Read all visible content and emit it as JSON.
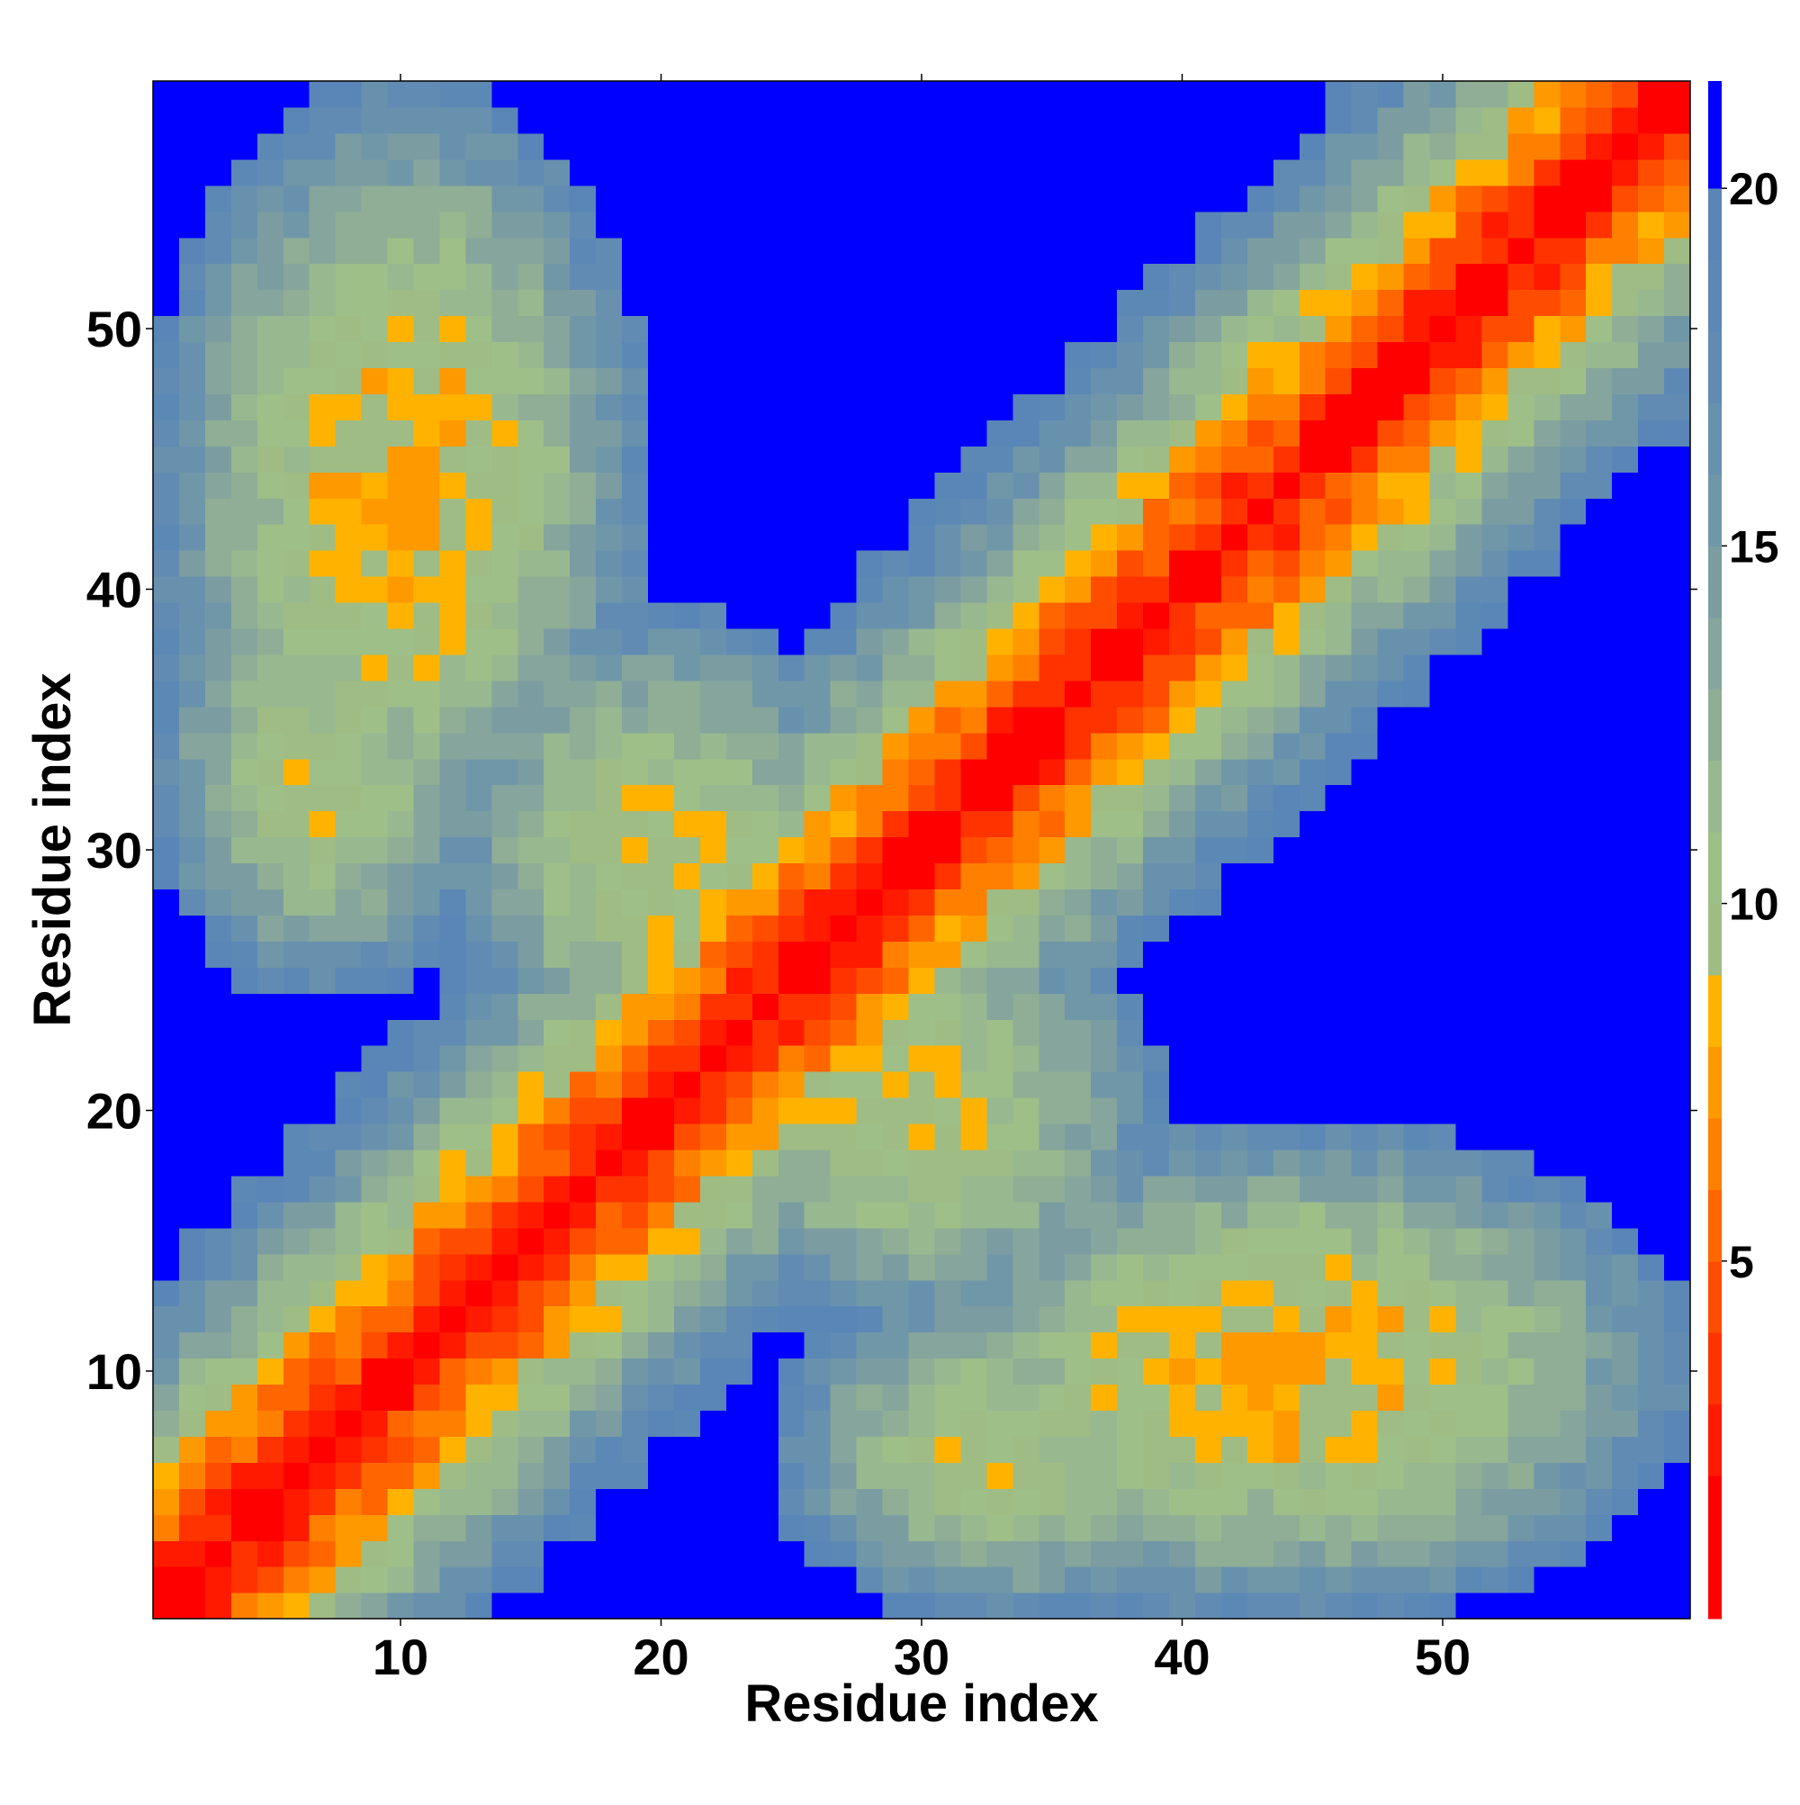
{
  "chart_data": {
    "type": "heatmap",
    "title": "",
    "xlabel": "Residue index",
    "ylabel": "Residue index",
    "n": 59,
    "xlim": [
      0.5,
      59.5
    ],
    "ylim": [
      0.5,
      59.5
    ],
    "x_ticks": [
      10,
      20,
      30,
      40,
      50
    ],
    "y_ticks": [
      10,
      20,
      30,
      40,
      50
    ],
    "x_tick_labels": [
      "10",
      "20",
      "30",
      "40",
      "50"
    ],
    "y_tick_labels": [
      "10",
      "20",
      "30",
      "40",
      "50"
    ],
    "grid": false,
    "colorbar": {
      "orientation": "vertical",
      "placement": "right",
      "range": [
        0,
        21.5
      ],
      "ticks": [
        5,
        10,
        15,
        20
      ],
      "tick_labels": [
        "5",
        "10",
        "15",
        "20"
      ],
      "bins": [
        {
          "from": 0.0,
          "to": 1.0,
          "color": "#ff0000"
        },
        {
          "from": 1.0,
          "to": 2.0,
          "color": "#ff0000"
        },
        {
          "from": 2.0,
          "to": 3.0,
          "color": "#ff1a00"
        },
        {
          "from": 3.0,
          "to": 4.0,
          "color": "#ff3300"
        },
        {
          "from": 4.0,
          "to": 5.0,
          "color": "#ff4d00"
        },
        {
          "from": 5.0,
          "to": 6.0,
          "color": "#ff6600"
        },
        {
          "from": 6.0,
          "to": 7.0,
          "color": "#ff8000"
        },
        {
          "from": 7.0,
          "to": 8.0,
          "color": "#ff9900"
        },
        {
          "from": 8.0,
          "to": 9.0,
          "color": "#ffb300"
        },
        {
          "from": 9.0,
          "to": 10.0,
          "color": "#9fbc85"
        },
        {
          "from": 10.0,
          "to": 11.0,
          "color": "#9ebf88"
        },
        {
          "from": 11.0,
          "to": 12.0,
          "color": "#98b88f"
        },
        {
          "from": 12.0,
          "to": 13.0,
          "color": "#8fae95"
        },
        {
          "from": 13.0,
          "to": 14.0,
          "color": "#86a59c"
        },
        {
          "from": 14.0,
          "to": 15.0,
          "color": "#7b9da2"
        },
        {
          "from": 15.0,
          "to": 16.0,
          "color": "#7097a8"
        },
        {
          "from": 16.0,
          "to": 17.0,
          "color": "#6891ae"
        },
        {
          "from": 17.0,
          "to": 18.0,
          "color": "#618bb2"
        },
        {
          "from": 18.0,
          "to": 19.0,
          "color": "#5c88b5"
        },
        {
          "from": 19.0,
          "to": 20.0,
          "color": "#5985b7"
        },
        {
          "from": 20.0,
          "to": 21.5,
          "color": "#0000ff"
        }
      ]
    },
    "cutoff_color": "#0000ff",
    "matrix_description": "Symmetric 59x59 residue-residue distance map: 0 on the diagonal, rising with sequence separation; extended inter-arm contacts between the N-terminal (1-16) and C-terminal (35-59) segments and between residues 1-15 and 25-40; values above 20 are shown in saturated blue."
  }
}
